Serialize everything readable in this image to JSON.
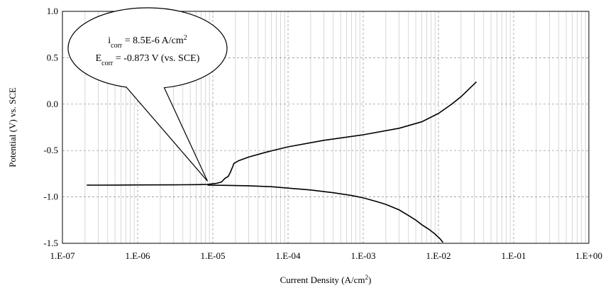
{
  "chart_data": {
    "type": "line",
    "title": "",
    "xlabel": "Current Density (A/cm",
    "xlabel_sup": "2",
    "xlabel_close": ")",
    "ylabel": "Potential (V) vs. SCE",
    "x_scale": "log",
    "xlim": [
      1e-07,
      1
    ],
    "ylim": [
      -1.5,
      1.0
    ],
    "x_ticks": [
      1e-07,
      1e-06,
      1e-05,
      0.0001,
      0.001,
      0.01,
      0.1,
      1
    ],
    "x_tick_labels": [
      "1.E-07",
      "1.E-06",
      "1.E-05",
      "1.E-04",
      "1.E-03",
      "1.E-02",
      "1.E-01",
      "1.E+00"
    ],
    "y_ticks": [
      -1.5,
      -1.0,
      -0.5,
      0.0,
      0.5,
      1.0
    ],
    "y_tick_labels": [
      "-1.5",
      "-1.0",
      "-0.5",
      "0.0",
      "0.5",
      "1.0"
    ],
    "grid": true,
    "legend": "none",
    "series": [
      {
        "x": [
          2.1e-07,
          5e-07,
          1e-06,
          3e-06,
          6e-06,
          8.5e-06,
          1.1e-05,
          1.3e-05,
          1.45e-05,
          1.6e-05,
          1.7e-05,
          1.8e-05,
          1.85e-05,
          1.9e-05,
          2.2e-05,
          3e-05,
          5e-05,
          0.0001,
          0.0003,
          0.001,
          0.003,
          0.006,
          0.01,
          0.015,
          0.02,
          0.026,
          0.032
        ],
        "y": [
          -0.873,
          -0.872,
          -0.871,
          -0.87,
          -0.868,
          -0.865,
          -0.855,
          -0.84,
          -0.8,
          -0.78,
          -0.74,
          -0.69,
          -0.67,
          -0.64,
          -0.61,
          -0.57,
          -0.52,
          -0.46,
          -0.39,
          -0.33,
          -0.26,
          -0.19,
          -0.1,
          0.0,
          0.08,
          0.17,
          0.24
        ]
      },
      {
        "x": [
          8.5e-06,
          1.5e-05,
          3e-05,
          6e-05,
          0.0001,
          0.0002,
          0.0004,
          0.0007,
          0.001,
          0.0015,
          0.002,
          0.003,
          0.004,
          0.005,
          0.006,
          0.0075,
          0.009,
          0.0105,
          0.0115
        ],
        "y": [
          -0.873,
          -0.875,
          -0.88,
          -0.89,
          -0.905,
          -0.925,
          -0.955,
          -0.985,
          -1.01,
          -1.05,
          -1.08,
          -1.14,
          -1.2,
          -1.25,
          -1.3,
          -1.35,
          -1.4,
          -1.45,
          -1.49
        ]
      }
    ],
    "annotation": {
      "line1_main": "i",
      "line1_sub": "corr",
      "line1_rest": " = 8.5E-6 A/cm",
      "line1_sup": "2",
      "line2_main": "E",
      "line2_sub": "corr",
      "line2_rest": " = -0.873 V (vs. SCE)",
      "pointer_x": 8.5e-06,
      "pointer_y": -0.83
    },
    "colors": {
      "line": "#000000",
      "grid": "#bdbdbd",
      "frame": "#000000",
      "background": "#ffffff"
    }
  }
}
